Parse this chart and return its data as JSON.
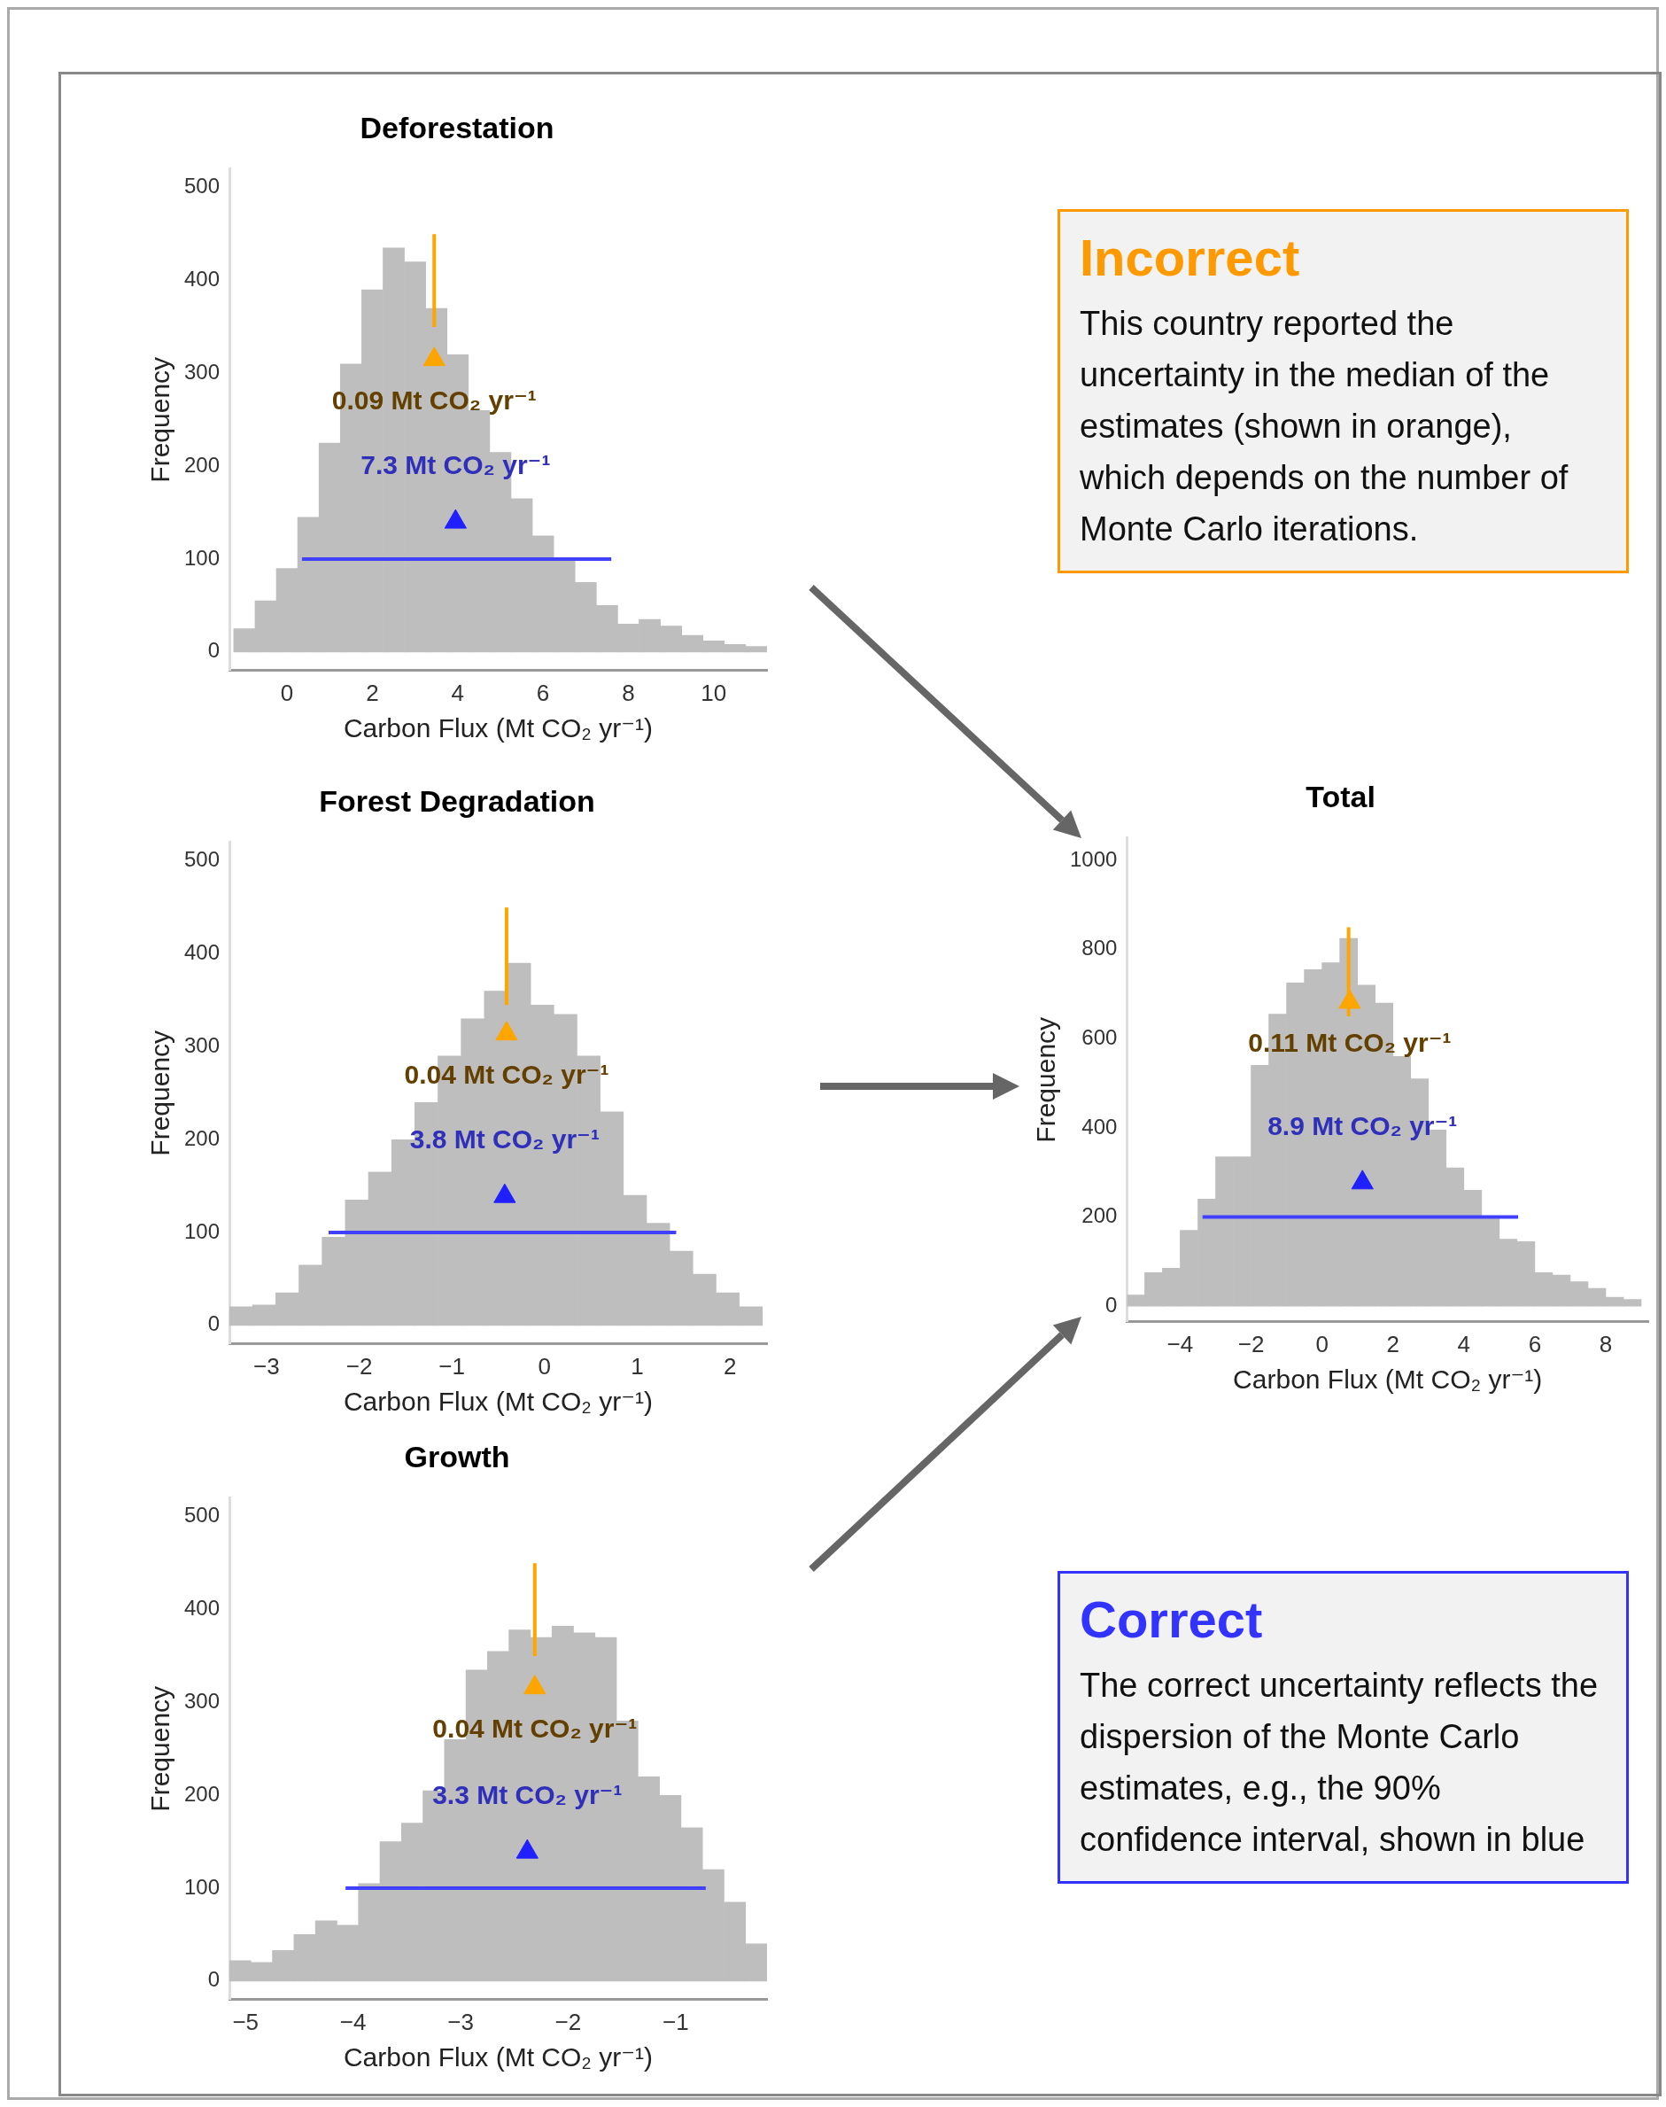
{
  "chart_data": [
    {
      "type": "histogram",
      "title": "Deforestation",
      "xlabel": "Carbon Flux (Mt CO₂ yr⁻¹)",
      "ylabel": "Frequency",
      "xlim": [
        -1.35,
        11.25
      ],
      "ylim": [
        -20,
        520
      ],
      "xticks": [
        0,
        2,
        4,
        6,
        8,
        10
      ],
      "yticks": [
        0,
        100,
        200,
        300,
        400,
        500
      ],
      "series": [
        {
          "type": "histogram",
          "color": "#bebebe",
          "bins": [
            -1.25,
            -0.75,
            -0.25,
            0.25,
            0.75,
            1.25,
            1.75,
            2.25,
            2.75,
            3.25,
            3.75,
            4.25,
            4.75,
            5.25,
            5.75,
            6.25,
            6.75,
            7.25,
            7.75,
            8.25,
            8.75,
            9.25,
            9.75,
            10.25,
            10.75,
            11.25
          ],
          "values": [
            25,
            55,
            90,
            145,
            225,
            310,
            390,
            435,
            420,
            370,
            320,
            260,
            215,
            165,
            125,
            100,
            75,
            50,
            30,
            35,
            28,
            18,
            12,
            8,
            6
          ]
        },
        {
          "type": "line",
          "color": "#ffa500",
          "x": [
            3.45,
            3.45
          ],
          "values": [
            350,
            450
          ]
        },
        {
          "type": "line",
          "color": "#4040ff",
          "x": [
            0.35,
            7.6
          ],
          "values": [
            100,
            100
          ]
        },
        {
          "type": "scatter",
          "color": "#ffa500",
          "marker": "triangle",
          "x": [
            3.45
          ],
          "values": [
            315
          ]
        },
        {
          "type": "scatter",
          "color": "#2020ff",
          "marker": "triangle",
          "x": [
            3.95
          ],
          "values": [
            140
          ]
        }
      ],
      "annotations": [
        "0.09 Mt CO₂ yr⁻¹",
        "7.3 Mt CO₂ yr⁻¹"
      ]
    },
    {
      "type": "histogram",
      "title": "Forest Degradation",
      "xlabel": "Carbon Flux (Mt CO₂ yr⁻¹)",
      "ylabel": "Frequency",
      "xlim": [
        -3.4,
        2.4
      ],
      "ylim": [
        -20,
        520
      ],
      "xticks": [
        -3,
        -2,
        -1,
        0,
        1,
        2
      ],
      "yticks": [
        0,
        100,
        200,
        300,
        400,
        500
      ],
      "series": [
        {
          "type": "histogram",
          "color": "#bebebe",
          "bins": [
            -3.4,
            -3.15,
            -2.9,
            -2.65,
            -2.4,
            -2.15,
            -1.9,
            -1.65,
            -1.4,
            -1.15,
            -0.9,
            -0.65,
            -0.4,
            -0.15,
            0.1,
            0.35,
            0.6,
            0.85,
            1.1,
            1.35,
            1.6,
            1.85,
            2.1,
            2.35
          ],
          "values": [
            20,
            22,
            35,
            65,
            95,
            135,
            165,
            200,
            240,
            290,
            330,
            360,
            390,
            345,
            335,
            290,
            230,
            140,
            110,
            80,
            55,
            35,
            20
          ]
        },
        {
          "type": "line",
          "color": "#ffa500",
          "x": [
            -0.41,
            -0.41
          ],
          "values": [
            345,
            450
          ]
        },
        {
          "type": "line",
          "color": "#4040ff",
          "x": [
            -2.33,
            1.42
          ],
          "values": [
            100,
            100
          ]
        },
        {
          "type": "scatter",
          "color": "#ffa500",
          "marker": "triangle",
          "x": [
            -0.41
          ],
          "values": [
            314
          ]
        },
        {
          "type": "scatter",
          "color": "#2020ff",
          "marker": "triangle",
          "x": [
            -0.43
          ],
          "values": [
            139
          ]
        }
      ],
      "annotations": [
        "0.04 Mt CO₂ yr⁻¹",
        "3.8 Mt CO₂ yr⁻¹"
      ]
    },
    {
      "type": "histogram",
      "title": "Growth",
      "xlabel": "Carbon Flux (Mt CO₂ yr⁻¹)",
      "ylabel": "Frequency",
      "xlim": [
        -5.15,
        -0.15
      ],
      "ylim": [
        -20,
        520
      ],
      "xticks": [
        -5,
        -4,
        -3,
        -2,
        -1
      ],
      "yticks": [
        0,
        100,
        200,
        300,
        400,
        500
      ],
      "series": [
        {
          "type": "histogram",
          "color": "#bebebe",
          "bins": [
            -5.15,
            -4.95,
            -4.75,
            -4.55,
            -4.35,
            -4.15,
            -3.95,
            -3.75,
            -3.55,
            -3.35,
            -3.15,
            -2.95,
            -2.75,
            -2.55,
            -2.35,
            -2.15,
            -1.95,
            -1.75,
            -1.55,
            -1.35,
            -1.15,
            -0.95,
            -0.75,
            -0.55,
            -0.35,
            -0.15
          ],
          "values": [
            22,
            20,
            33,
            50,
            65,
            60,
            105,
            150,
            170,
            205,
            260,
            335,
            355,
            378,
            370,
            382,
            375,
            370,
            280,
            220,
            200,
            165,
            120,
            85,
            40
          ]
        },
        {
          "type": "line",
          "color": "#ffa500",
          "x": [
            -2.31,
            -2.31
          ],
          "values": [
            350,
            450
          ]
        },
        {
          "type": "line",
          "color": "#4040ff",
          "x": [
            -4.07,
            -0.72
          ],
          "values": [
            100,
            100
          ]
        },
        {
          "type": "scatter",
          "color": "#ffa500",
          "marker": "triangle",
          "x": [
            -2.31
          ],
          "values": [
            316
          ]
        },
        {
          "type": "scatter",
          "color": "#2020ff",
          "marker": "triangle",
          "x": [
            -2.38
          ],
          "values": [
            139
          ]
        }
      ],
      "annotations": [
        "0.04 Mt CO₂ yr⁻¹",
        "3.3 Mt CO₂ yr⁻¹"
      ]
    },
    {
      "type": "histogram",
      "title": "Total",
      "xlabel": "Carbon Flux (Mt CO₂ yr⁻¹)",
      "ylabel": "Frequency",
      "xlim": [
        -5.5,
        9.2
      ],
      "ylim": [
        -35,
        1050
      ],
      "xticks": [
        -4,
        -2,
        0,
        2,
        4,
        6,
        8
      ],
      "yticks": [
        0,
        200,
        400,
        600,
        800,
        1000
      ],
      "series": [
        {
          "type": "histogram",
          "color": "#bebebe",
          "bins": [
            -5.5,
            -5,
            -4.5,
            -4,
            -3.5,
            -3,
            -2.5,
            -2,
            -1.5,
            -1,
            -0.5,
            0,
            0.5,
            1,
            1.5,
            2,
            2.5,
            3,
            3.5,
            4,
            4.5,
            5,
            5.5,
            6,
            6.5,
            7,
            7.5,
            8,
            8.5,
            9
          ],
          "values": [
            25,
            75,
            85,
            170,
            240,
            335,
            335,
            540,
            655,
            725,
            755,
            770,
            825,
            720,
            680,
            560,
            510,
            395,
            310,
            260,
            200,
            150,
            145,
            75,
            70,
            55,
            40,
            20,
            15
          ]
        },
        {
          "type": "line",
          "color": "#ffa500",
          "x": [
            0.75,
            0.75
          ],
          "values": [
            650,
            850
          ]
        },
        {
          "type": "line",
          "color": "#4040ff",
          "x": [
            -3.37,
            5.53
          ],
          "values": [
            200,
            200
          ]
        },
        {
          "type": "scatter",
          "color": "#ffa500",
          "marker": "triangle",
          "x": [
            0.78
          ],
          "values": [
            682
          ]
        },
        {
          "type": "scatter",
          "color": "#2020ff",
          "marker": "triangle",
          "x": [
            1.14
          ],
          "values": [
            277
          ]
        }
      ],
      "annotations": [
        "0.11 Mt CO₂ yr⁻¹",
        "8.9 Mt CO₂ yr⁻¹"
      ]
    },
    {
      "type": "other",
      "title": "Incorrect",
      "color": "#ff9900",
      "annotations": [
        "This country reported the uncertainty in the median of the estimates (shown in orange), which depends on the number of Monte Carlo iterations."
      ]
    },
    {
      "type": "other",
      "title": "Correct",
      "color": "#3333ff",
      "annotations": [
        "The correct uncertainty reflects the dispersion of the Monte Carlo estimates, e.g., the 90% confidence interval, shown in blue"
      ]
    }
  ]
}
